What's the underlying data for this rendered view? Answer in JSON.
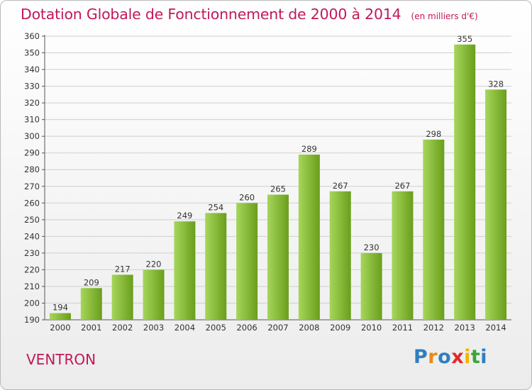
{
  "header": {
    "title": "Dotation Globale de Fonctionnement de 2000 à 2014",
    "unit": "(en milliers d'€)"
  },
  "footer": {
    "commune": "VENTRON",
    "logo_letters": [
      "P",
      "r",
      "o",
      "x",
      "i",
      "t",
      "i"
    ],
    "logo_colors": [
      "#2f7fc1",
      "#e8891a",
      "#2f7fc1",
      "#e02a2a",
      "#f0b400",
      "#3aa53a",
      "#2f7fc1"
    ],
    "logo_name": "proxiti-logo"
  },
  "colors": {
    "bar_light": "#a6d65b",
    "bar_dark": "#6a9e1b",
    "title": "#c2185b",
    "grid": "#cfcfcf"
  },
  "chart_data": {
    "type": "bar",
    "categories": [
      "2000",
      "2001",
      "2002",
      "2003",
      "2004",
      "2005",
      "2006",
      "2007",
      "2008",
      "2009",
      "2010",
      "2011",
      "2012",
      "2013",
      "2014"
    ],
    "values": [
      194,
      209,
      217,
      220,
      249,
      254,
      260,
      265,
      289,
      267,
      230,
      267,
      298,
      355,
      328
    ],
    "ylim": [
      190,
      360
    ],
    "yticks": [
      190,
      200,
      210,
      220,
      230,
      240,
      250,
      260,
      270,
      280,
      290,
      300,
      310,
      320,
      330,
      340,
      350,
      360
    ],
    "grid": true,
    "data_labels": true
  }
}
